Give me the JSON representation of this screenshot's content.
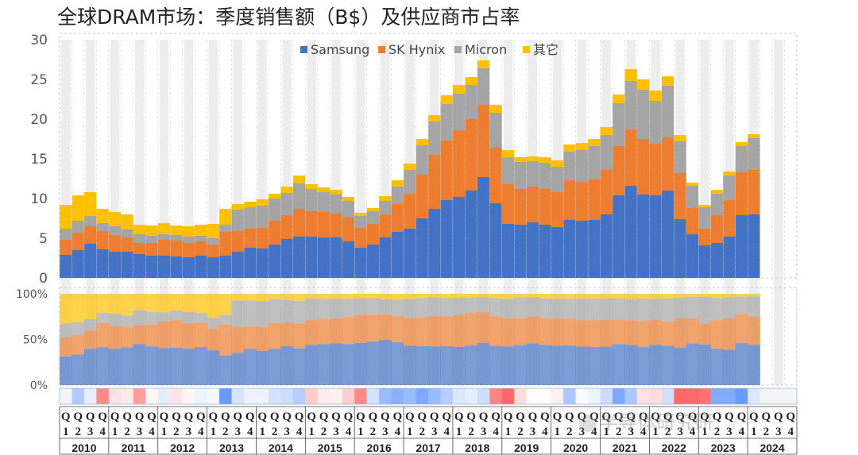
{
  "title": "全球DRAM市场：季度销售额（B$）及供应商市占率",
  "watermark": "半导体研究研",
  "chart_data": {
    "type": "bar",
    "stacked": true,
    "title": "全球DRAM市场：季度销售额（B$）及供应商市占率",
    "years": [
      "2010",
      "2011",
      "2012",
      "2013",
      "2014",
      "2015",
      "2016",
      "2017",
      "2018",
      "2019",
      "2020",
      "2021",
      "2022",
      "2023",
      "2024"
    ],
    "quarter_labels": [
      "Q1",
      "Q2",
      "Q3",
      "Q4"
    ],
    "x_quarter_digits": [
      "1",
      "2",
      "3",
      "4"
    ],
    "ylim": [
      0,
      30
    ],
    "yticks": [
      "0",
      "5",
      "10",
      "15",
      "20",
      "25",
      "30"
    ],
    "share_ylim": [
      0,
      100
    ],
    "share_ticks": [
      "0%",
      "50%",
      "100%"
    ],
    "legend_position": "top-right",
    "series": [
      {
        "name": "Samsung",
        "color": "#4472C4",
        "values": [
          2.9,
          3.5,
          4.3,
          3.6,
          3.3,
          3.3,
          3.0,
          2.8,
          2.8,
          2.7,
          2.6,
          2.8,
          2.6,
          2.8,
          3.3,
          3.8,
          3.7,
          4.2,
          4.9,
          5.2,
          5.2,
          5.1,
          5.1,
          4.6,
          3.8,
          4.2,
          5.1,
          5.8,
          6.2,
          7.5,
          8.7,
          9.8,
          10.2,
          11.0,
          12.7,
          9.4,
          6.8,
          6.7,
          7.0,
          6.7,
          6.4,
          7.3,
          7.2,
          7.3,
          8.0,
          10.4,
          11.6,
          10.5,
          10.4,
          11.0,
          7.4,
          5.5,
          4.1,
          4.4,
          5.2,
          7.9,
          8.0
        ]
      },
      {
        "name": "SK Hynix",
        "color": "#ED7D31",
        "values": [
          1.9,
          2.2,
          2.2,
          2.3,
          2.1,
          1.8,
          1.4,
          1.6,
          2.0,
          2.0,
          1.8,
          1.8,
          1.6,
          3.0,
          2.6,
          2.4,
          2.6,
          3.0,
          3.0,
          3.5,
          3.2,
          3.2,
          3.0,
          3.0,
          2.5,
          2.6,
          2.9,
          3.5,
          4.4,
          5.5,
          6.8,
          7.5,
          8.4,
          9.0,
          9.1,
          7.0,
          5.0,
          4.5,
          4.5,
          4.5,
          4.4,
          5.0,
          4.9,
          5.1,
          5.6,
          6.2,
          7.1,
          7.0,
          6.5,
          6.7,
          5.8,
          3.3,
          2.1,
          3.5,
          4.6,
          5.4,
          5.6
        ]
      },
      {
        "name": "Micron",
        "color": "#A5A5A5",
        "values": [
          1.4,
          1.5,
          1.3,
          1.0,
          1.1,
          1.0,
          1.1,
          0.9,
          0.7,
          0.7,
          0.8,
          0.7,
          0.8,
          0.9,
          2.7,
          2.7,
          2.8,
          2.8,
          2.8,
          3.2,
          2.8,
          2.5,
          2.4,
          2.1,
          1.5,
          1.6,
          1.7,
          2.2,
          3.0,
          3.7,
          4.2,
          4.6,
          4.6,
          4.3,
          4.6,
          4.4,
          3.4,
          3.4,
          3.2,
          3.3,
          3.2,
          3.6,
          4.0,
          4.2,
          4.4,
          5.4,
          6.1,
          6.2,
          5.4,
          6.5,
          4.0,
          2.8,
          2.7,
          2.7,
          3.1,
          3.3,
          4.0
        ]
      },
      {
        "name": "其它",
        "color": "#FFC000",
        "values": [
          3.0,
          3.2,
          3.0,
          1.8,
          1.8,
          1.9,
          1.2,
          1.3,
          1.4,
          1.2,
          1.3,
          1.4,
          1.8,
          2.0,
          0.7,
          0.7,
          0.8,
          0.6,
          0.8,
          1.0,
          0.6,
          0.6,
          0.6,
          0.5,
          0.4,
          0.4,
          0.6,
          0.8,
          0.8,
          0.8,
          0.8,
          1.1,
          1.1,
          1.0,
          1.0,
          1.0,
          0.9,
          0.6,
          0.6,
          0.7,
          0.8,
          0.9,
          0.9,
          0.9,
          1.0,
          1.1,
          1.5,
          1.3,
          1.3,
          1.2,
          0.8,
          0.4,
          0.3,
          0.5,
          0.5,
          0.5,
          0.5
        ]
      }
    ]
  }
}
